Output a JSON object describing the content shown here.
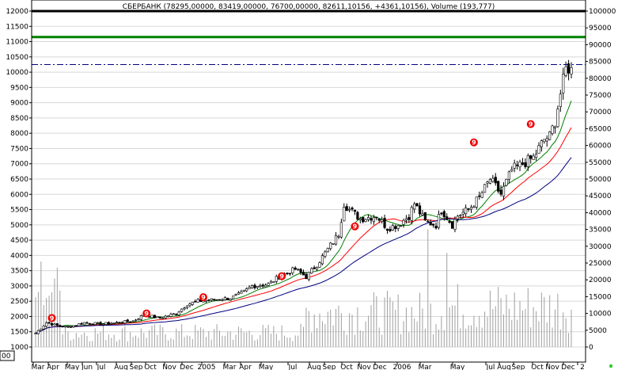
{
  "chart_data": {
    "type": "candlestick",
    "title": "СБЕРБАНК (78295,00000, 83419,00000, 76700,00000, 82611,10156, +4361,10156), Volume (193,777)",
    "ylim_left": [
      1000,
      12000
    ],
    "ylim_right": [
      0,
      100000
    ],
    "left_ticks": [
      "12000",
      "11500",
      "11000",
      "10500",
      "10000",
      "9500",
      "9000",
      "8500",
      "8000",
      "7500",
      "7000",
      "6500",
      "6000",
      "5500",
      "5000",
      "4500",
      "4000",
      "3500",
      "3000",
      "2500",
      "2000",
      "1500",
      "1000"
    ],
    "right_ticks": [
      "100000",
      "95000",
      "90000",
      "85000",
      "80000",
      "75000",
      "70000",
      "65000",
      "60000",
      "55000",
      "50000",
      "45000",
      "40000",
      "35000",
      "30000",
      "25000",
      "20000",
      "15000",
      "10000",
      "5000",
      "0"
    ],
    "x_ticks": [
      "Mar",
      "Apr",
      "May",
      "Jun",
      "Jul",
      "Aug",
      "Sep",
      "Oct",
      "Nov",
      "Dec",
      "2005",
      "Mar",
      "Apr",
      "May",
      "Jul",
      "Aug",
      "Sep",
      "Oct",
      "Nov",
      "Dec",
      "2006",
      "Mar",
      "May",
      "Jul",
      "Aug",
      "Sep",
      "Oct",
      "Nov",
      "Dec",
      "2"
    ],
    "corner_label": "00",
    "horizontal_lines": [
      {
        "value": 12000,
        "color": "#000000",
        "style": "solid"
      },
      {
        "value": 11150,
        "color": "#008000",
        "style": "solid"
      },
      {
        "value": 10250,
        "color": "#000080",
        "style": "dash-dot"
      }
    ],
    "close_anchors": [
      [
        0,
        1450
      ],
      [
        4,
        1800
      ],
      [
        8,
        1700
      ],
      [
        12,
        1650
      ],
      [
        18,
        1800
      ],
      [
        24,
        1750
      ],
      [
        30,
        1800
      ],
      [
        36,
        1850
      ],
      [
        40,
        2050
      ],
      [
        46,
        1950
      ],
      [
        52,
        2100
      ],
      [
        56,
        2400
      ],
      [
        60,
        2500
      ],
      [
        66,
        2550
      ],
      [
        72,
        2600
      ],
      [
        76,
        2750
      ],
      [
        80,
        3000
      ],
      [
        86,
        3050
      ],
      [
        90,
        3300
      ],
      [
        96,
        3550
      ],
      [
        100,
        3300
      ],
      [
        104,
        3700
      ],
      [
        108,
        4200
      ],
      [
        112,
        4700
      ],
      [
        114,
        5700
      ],
      [
        116,
        5500
      ],
      [
        120,
        5200
      ],
      [
        126,
        5300
      ],
      [
        130,
        4900
      ],
      [
        134,
        5000
      ],
      [
        138,
        5300
      ],
      [
        140,
        5700
      ],
      [
        144,
        5100
      ],
      [
        148,
        5000
      ],
      [
        150,
        5500
      ],
      [
        154,
        5000
      ],
      [
        156,
        5300
      ],
      [
        160,
        5500
      ],
      [
        164,
        5900
      ],
      [
        168,
        6500
      ],
      [
        172,
        6000
      ],
      [
        176,
        6800
      ],
      [
        180,
        7000
      ],
      [
        184,
        7200
      ],
      [
        188,
        7800
      ],
      [
        190,
        7900
      ],
      [
        192,
        8400
      ],
      [
        194,
        9300
      ],
      [
        196,
        10100
      ]
    ],
    "markers": [
      {
        "label": "9",
        "x_index": 6,
        "value": 1950
      },
      {
        "label": "9",
        "x_index": 41,
        "value": 2100
      },
      {
        "label": "9",
        "x_index": 62,
        "value": 2630
      },
      {
        "label": "9",
        "x_index": 91,
        "value": 3320
      },
      {
        "label": "9",
        "x_index": 118,
        "value": 4950
      },
      {
        "label": "9",
        "x_index": 162,
        "value": 7700
      },
      {
        "label": "9",
        "x_index": 183,
        "value": 8300
      }
    ],
    "series": [
      {
        "type": "candles",
        "up_color": "#ffffff",
        "down_color": "#000000"
      },
      {
        "type": "line",
        "period": 10,
        "color": "#008000"
      },
      {
        "type": "line",
        "period": 20,
        "color": "#ff0000"
      },
      {
        "type": "line",
        "period": 40,
        "color": "#000080"
      },
      {
        "type": "volume-bars",
        "color": "#a0a0a0"
      }
    ],
    "grid": true
  }
}
